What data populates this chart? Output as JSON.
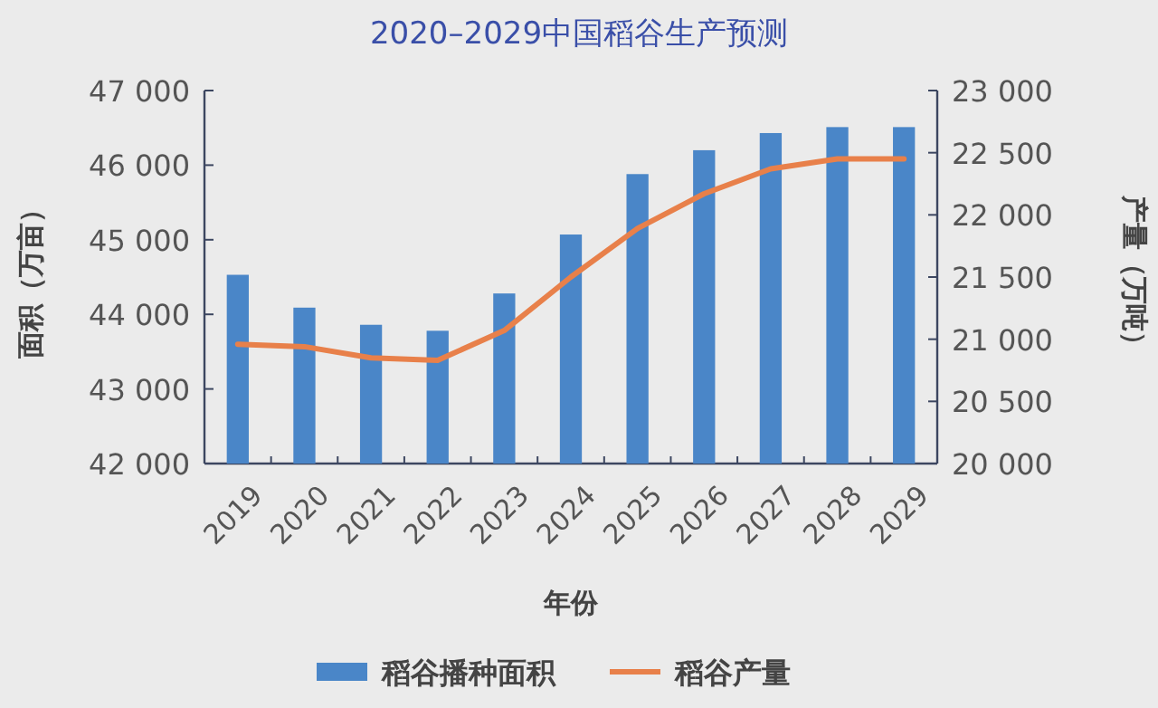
{
  "chart_data": {
    "type": "bar",
    "title": "2020–2029中国稻谷生产预测",
    "xlabel": "年份",
    "ylabel": "面积（万亩）",
    "y2label": "产量（万吨）",
    "categories": [
      "2019",
      "2020",
      "2021",
      "2022",
      "2023",
      "2024",
      "2025",
      "2026",
      "2027",
      "2028",
      "2029"
    ],
    "series": [
      {
        "name": "稻谷播种面积",
        "color": "#4a86c8",
        "values": [
          44530,
          44090,
          43860,
          43780,
          44280,
          45070,
          45880,
          46200,
          46430,
          46510,
          46510
        ]
      },
      {
        "name": "稻谷产量",
        "type": "line",
        "axis": "y2",
        "color": "#e8804a",
        "values": [
          20960,
          20940,
          20850,
          20830,
          21070,
          21500,
          21890,
          22170,
          22370,
          22450,
          22450
        ]
      }
    ],
    "ylim": [
      42000,
      47000
    ],
    "yticks": [
      {
        "value": 42000,
        "label": "42 000"
      },
      {
        "value": 43000,
        "label": "43 000"
      },
      {
        "value": 44000,
        "label": "44 000"
      },
      {
        "value": 45000,
        "label": "45 000"
      },
      {
        "value": 46000,
        "label": "46 000"
      },
      {
        "value": 47000,
        "label": "47 000"
      }
    ],
    "y2lim": [
      20000,
      23000
    ],
    "y2ticks": [
      {
        "value": 20000,
        "label": "20 000"
      },
      {
        "value": 20500,
        "label": "20 500"
      },
      {
        "value": 21000,
        "label": "21 000"
      },
      {
        "value": 21500,
        "label": "21 500"
      },
      {
        "value": 22000,
        "label": "22 000"
      },
      {
        "value": 22500,
        "label": "22 500"
      },
      {
        "value": 23000,
        "label": "23 000"
      }
    ],
    "legend": "bottom"
  }
}
